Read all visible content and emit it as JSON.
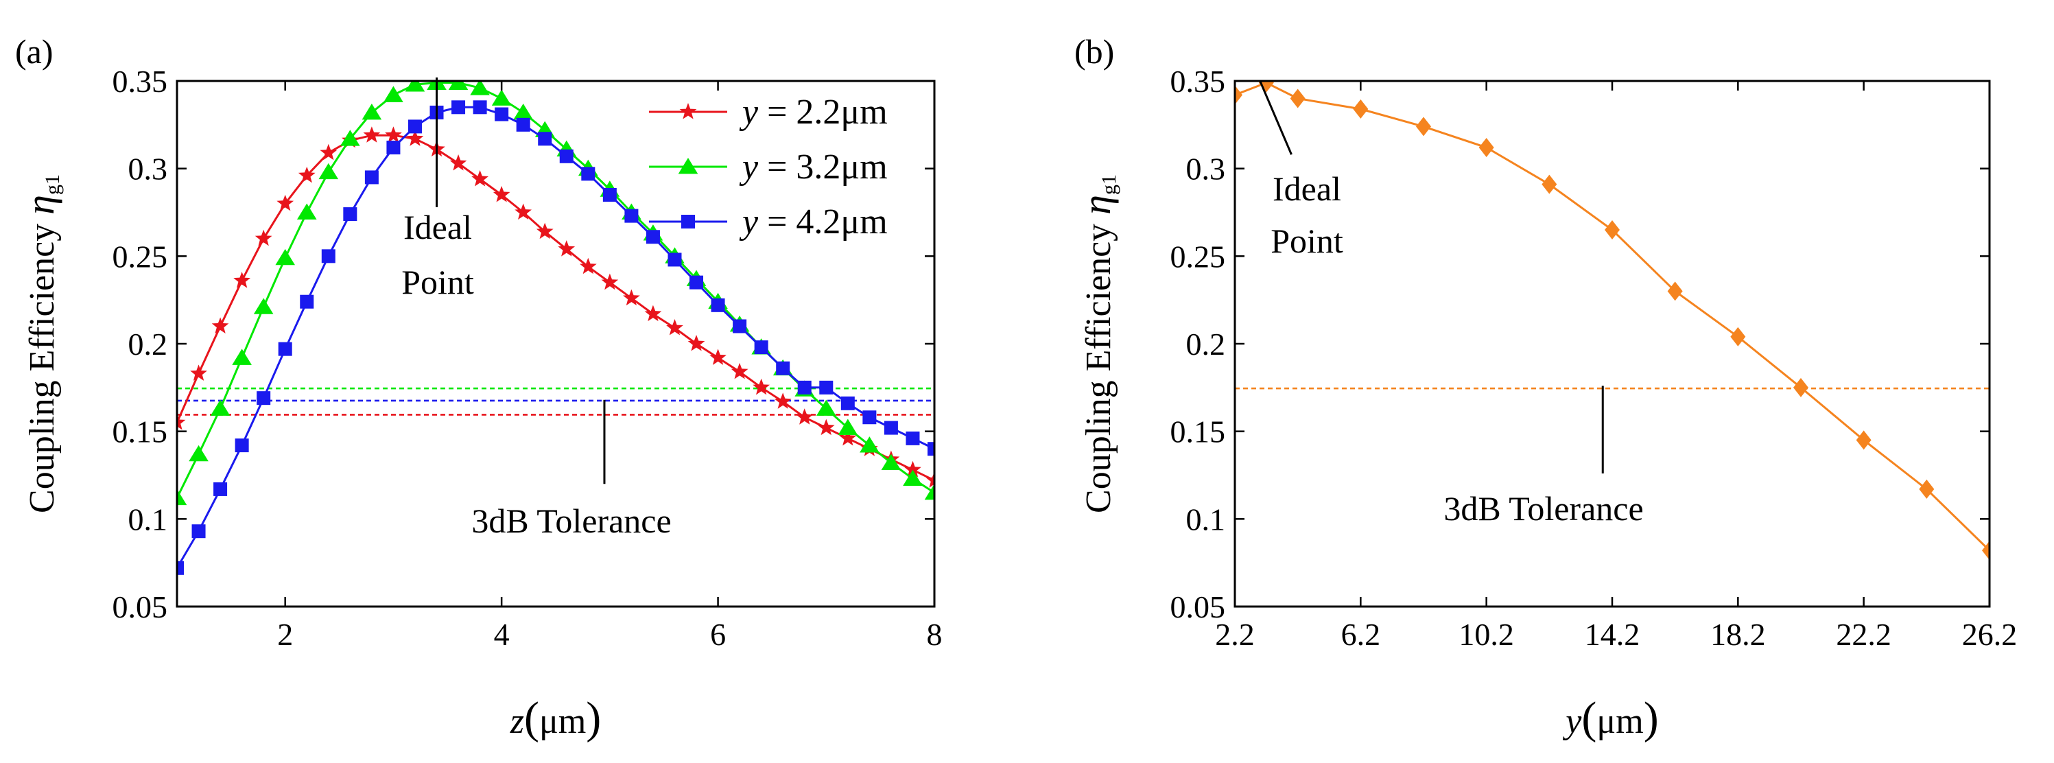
{
  "chart_data": [
    {
      "type": "line",
      "panel_label": "(a)",
      "xlabel": {
        "var": "z",
        "unit": "μm"
      },
      "ylabel": {
        "text": "Coupling Efficiency",
        "symbol": "η",
        "subscript": "g1"
      },
      "xlim": [
        1,
        8
      ],
      "ylim": [
        0.05,
        0.35
      ],
      "xticks": [
        2,
        4,
        6,
        8
      ],
      "xtick_labels": [
        "2",
        "4",
        "6",
        "8"
      ],
      "yticks": [
        0.05,
        0.1,
        0.15,
        0.2,
        0.25,
        0.3,
        0.35
      ],
      "ytick_labels": [
        "0.05",
        "0.1",
        "0.15",
        "0.2",
        "0.25",
        "0.3",
        "0.35"
      ],
      "legend_position": "top-right",
      "series": [
        {
          "name": "y = 2.2μm",
          "legend_var": "y",
          "legend_value": " = 2.2μm",
          "color": "#e8141c",
          "marker": "star",
          "x": [
            1.0,
            1.2,
            1.4,
            1.6,
            1.8,
            2.0,
            2.2,
            2.4,
            2.6,
            2.8,
            3.0,
            3.2,
            3.4,
            3.6,
            3.8,
            4.0,
            4.2,
            4.4,
            4.6,
            4.8,
            5.0,
            5.2,
            5.4,
            5.6,
            5.8,
            6.0,
            6.2,
            6.4,
            6.6,
            6.8,
            7.0,
            7.2,
            7.4,
            7.6,
            7.8,
            8.0
          ],
          "y": [
            0.155,
            0.183,
            0.21,
            0.236,
            0.26,
            0.28,
            0.296,
            0.309,
            0.316,
            0.319,
            0.319,
            0.317,
            0.311,
            0.303,
            0.294,
            0.285,
            0.275,
            0.264,
            0.254,
            0.244,
            0.235,
            0.226,
            0.217,
            0.209,
            0.2,
            0.192,
            0.184,
            0.175,
            0.167,
            0.158,
            0.152,
            0.146,
            0.14,
            0.134,
            0.128,
            0.122
          ]
        },
        {
          "name": "y = 3.2μm",
          "legend_var": "y",
          "legend_value": " = 3.2μm",
          "color": "#00e800",
          "marker": "triangle",
          "x": [
            1.0,
            1.2,
            1.4,
            1.6,
            1.8,
            2.0,
            2.2,
            2.4,
            2.6,
            2.8,
            3.0,
            3.2,
            3.4,
            3.6,
            3.8,
            4.0,
            4.2,
            4.4,
            4.6,
            4.8,
            5.0,
            5.2,
            5.4,
            5.6,
            5.8,
            6.0,
            6.2,
            6.4,
            6.6,
            6.8,
            7.0,
            7.2,
            7.4,
            7.6,
            7.8,
            8.0
          ],
          "y": [
            0.112,
            0.137,
            0.163,
            0.192,
            0.221,
            0.249,
            0.275,
            0.298,
            0.317,
            0.332,
            0.342,
            0.348,
            0.349,
            0.349,
            0.346,
            0.34,
            0.332,
            0.322,
            0.311,
            0.3,
            0.288,
            0.275,
            0.263,
            0.25,
            0.237,
            0.224,
            0.211,
            0.198,
            0.186,
            0.174,
            0.163,
            0.152,
            0.142,
            0.132,
            0.123,
            0.115
          ]
        },
        {
          "name": "y = 4.2μm",
          "legend_var": "y",
          "legend_value": " = 4.2μm",
          "color": "#1a1aee",
          "marker": "square",
          "x": [
            1.0,
            1.2,
            1.4,
            1.6,
            1.8,
            2.0,
            2.2,
            2.4,
            2.6,
            2.8,
            3.0,
            3.2,
            3.4,
            3.6,
            3.8,
            4.0,
            4.2,
            4.4,
            4.6,
            4.8,
            5.0,
            5.2,
            5.4,
            5.6,
            5.8,
            6.0,
            6.2,
            6.4,
            6.6,
            6.8,
            7.0,
            7.2,
            7.4,
            7.6,
            7.8,
            8.0
          ],
          "y": [
            0.072,
            0.093,
            0.117,
            0.142,
            0.169,
            0.197,
            0.224,
            0.25,
            0.274,
            0.295,
            0.312,
            0.324,
            0.332,
            0.335,
            0.335,
            0.331,
            0.325,
            0.317,
            0.307,
            0.297,
            0.285,
            0.273,
            0.261,
            0.248,
            0.235,
            0.222,
            0.21,
            0.198,
            0.186,
            0.175,
            0.175,
            0.166,
            0.158,
            0.152,
            0.146,
            0.14
          ]
        }
      ],
      "reference_lines": [
        {
          "y": 0.1745,
          "color": "#00e800"
        },
        {
          "y": 0.1675,
          "color": "#1a1aee"
        },
        {
          "y": 0.1595,
          "color": "#e8141c"
        }
      ],
      "annotations": [
        {
          "lines": [
            "Ideal",
            "Point"
          ],
          "pointer_from": [
            3.4,
            0.278
          ],
          "pointer_to": [
            3.4,
            0.352
          ]
        },
        {
          "lines": [
            "3dB Tolerance"
          ],
          "pointer_from": [
            4.95,
            0.12
          ],
          "pointer_to": [
            4.95,
            0.168
          ]
        }
      ]
    },
    {
      "type": "line",
      "panel_label": "(b)",
      "xlabel": {
        "var": "y",
        "unit": "μm"
      },
      "ylabel": {
        "text": "Coupling Efficiency",
        "symbol": "η",
        "subscript": "g1"
      },
      "xlim": [
        2.2,
        26.2
      ],
      "ylim": [
        0.05,
        0.35
      ],
      "xticks": [
        2.2,
        6.2,
        10.2,
        14.2,
        18.2,
        22.2,
        26.2
      ],
      "xtick_labels": [
        "2.2",
        "6.2",
        "10.2",
        "14.2",
        "18.2",
        "22.2",
        "26.2"
      ],
      "yticks": [
        0.05,
        0.1,
        0.15,
        0.2,
        0.25,
        0.3,
        0.35
      ],
      "ytick_labels": [
        "0.05",
        "0.1",
        "0.15",
        "0.2",
        "0.25",
        "0.3",
        "0.35"
      ],
      "series": [
        {
          "name": "coupling efficiency",
          "color": "#f5841f",
          "marker": "diamond",
          "x": [
            2.2,
            3.2,
            4.2,
            6.2,
            8.2,
            10.2,
            12.2,
            14.2,
            16.2,
            18.2,
            20.2,
            22.2,
            24.2,
            26.2
          ],
          "y": [
            0.342,
            0.349,
            0.34,
            0.334,
            0.324,
            0.312,
            0.291,
            0.265,
            0.23,
            0.204,
            0.175,
            0.145,
            0.117,
            0.082
          ]
        }
      ],
      "reference_lines": [
        {
          "y": 0.1745,
          "color": "#f5841f"
        }
      ],
      "annotations": [
        {
          "lines": [
            "Ideal",
            "Point"
          ],
          "pointer_from": [
            4.0,
            0.308
          ],
          "pointer_to": [
            3.0,
            0.35
          ]
        },
        {
          "lines": [
            "3dB Tolerance"
          ],
          "pointer_from": [
            13.9,
            0.126
          ],
          "pointer_to": [
            13.9,
            0.176
          ]
        }
      ]
    }
  ]
}
